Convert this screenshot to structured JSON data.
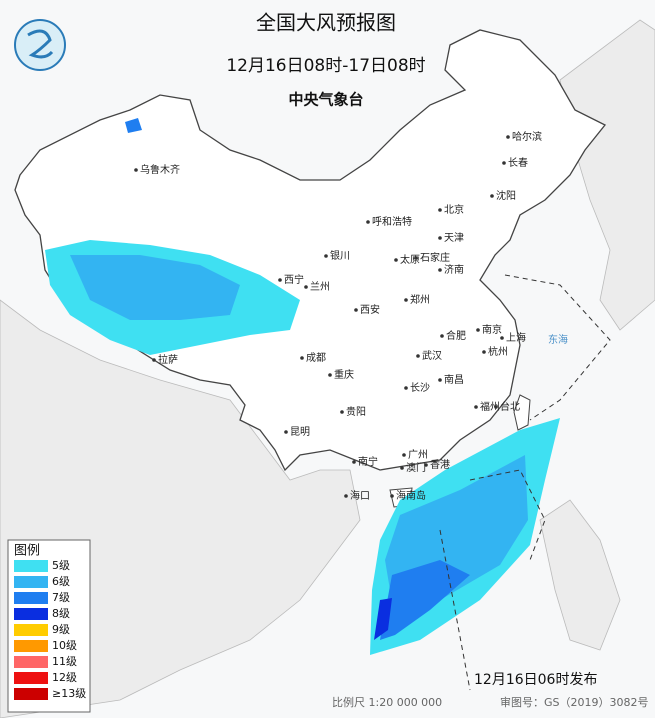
{
  "header": {
    "title": "全国大风预报图",
    "period": "12月16日08时-17日08时",
    "issuer": "中央气象台"
  },
  "map": {
    "cities": [
      "哈尔滨",
      "长春",
      "沈阳",
      "乌鲁木齐",
      "北京",
      "呼和浩特",
      "天津",
      "银川",
      "太原",
      "石家庄",
      "济南",
      "西宁",
      "兰州",
      "郑州",
      "西安",
      "合肥",
      "南京",
      "上海",
      "成都",
      "武汉",
      "杭州",
      "重庆",
      "长沙",
      "南昌",
      "拉萨",
      "贵阳",
      "福州",
      "台北",
      "昆明",
      "南宁",
      "广州",
      "香港",
      "澳门",
      "海口",
      "海南岛"
    ],
    "seas": [
      "东海"
    ]
  },
  "legend": {
    "title": "图例",
    "items": [
      {
        "label": "5级",
        "color": "#3fe0f2"
      },
      {
        "label": "6级",
        "color": "#33b4f2"
      },
      {
        "label": "7级",
        "color": "#1f7ef0"
      },
      {
        "label": "8级",
        "color": "#0a2ee0"
      },
      {
        "label": "9级",
        "color": "#ffcc00"
      },
      {
        "label": "10级",
        "color": "#ff9900"
      },
      {
        "label": "11级",
        "color": "#ff6666"
      },
      {
        "label": "12级",
        "color": "#ee1111"
      },
      {
        "label": "≥13级",
        "color": "#cc0000"
      }
    ]
  },
  "footer": {
    "issued": "12月16日06时发布",
    "scale": "比例尺 1:20 000 000",
    "review": "审图号：GS（2019）3082号"
  }
}
